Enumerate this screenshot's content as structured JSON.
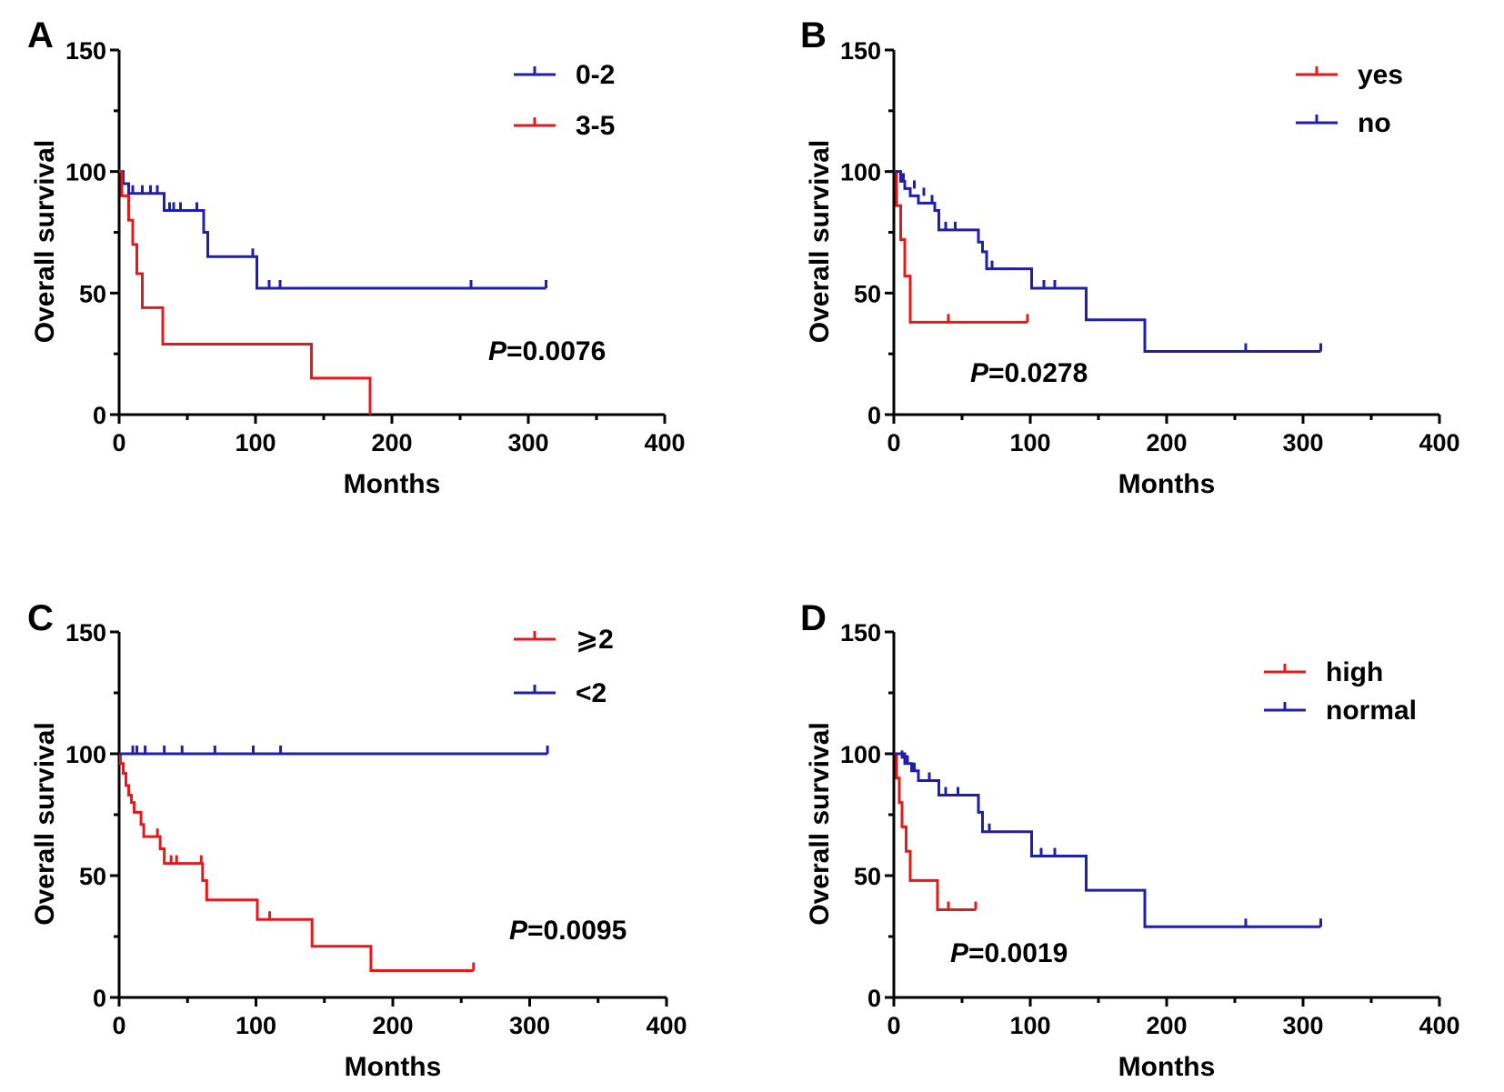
{
  "chart_data": [
    {
      "type": "line",
      "subtype": "kaplan-meier",
      "panel": "A",
      "xlabel": "Months",
      "ylabel": "Overall survival",
      "xlim": [
        0,
        400
      ],
      "ylim": [
        0,
        150
      ],
      "xticks": [
        0,
        100,
        200,
        300,
        400
      ],
      "yticks": [
        0,
        50,
        100,
        150
      ],
      "legend_position": "top-right",
      "p_prefix": "P",
      "p_text": "=0.0076",
      "series": [
        {
          "name": "0-2",
          "color": "#1f1fa8",
          "steps": [
            [
              0,
              100
            ],
            [
              3,
              95
            ],
            [
              7,
              91
            ],
            [
              33,
              84
            ],
            [
              62,
              75
            ],
            [
              65,
              65
            ],
            [
              101,
              52
            ],
            [
              313,
              52
            ]
          ],
          "censors": [
            [
              10,
              91
            ],
            [
              17,
              91
            ],
            [
              23,
              91
            ],
            [
              28,
              91
            ],
            [
              37,
              84
            ],
            [
              40,
              84
            ],
            [
              45,
              84
            ],
            [
              57,
              84
            ],
            [
              98,
              65
            ],
            [
              110,
              52
            ],
            [
              118,
              52
            ],
            [
              258,
              52
            ],
            [
              313,
              52
            ]
          ]
        },
        {
          "name": "3-5",
          "color": "#e41a1a",
          "steps": [
            [
              0,
              100
            ],
            [
              2,
              90
            ],
            [
              7,
              80
            ],
            [
              10,
              70
            ],
            [
              13,
              58
            ],
            [
              17,
              44
            ],
            [
              32,
              29
            ],
            [
              141,
              15
            ],
            [
              184,
              0
            ]
          ],
          "censors": []
        }
      ]
    },
    {
      "type": "line",
      "subtype": "kaplan-meier",
      "panel": "B",
      "xlabel": "Months",
      "ylabel": "Overall survival",
      "xlim": [
        0,
        400
      ],
      "ylim": [
        0,
        150
      ],
      "xticks": [
        0,
        100,
        200,
        300,
        400
      ],
      "yticks": [
        0,
        50,
        100,
        150
      ],
      "legend_position": "top-right",
      "p_prefix": "P",
      "p_text": "=0.0278",
      "series": [
        {
          "name": "yes",
          "color": "#e41a1a",
          "steps": [
            [
              0,
              100
            ],
            [
              2,
              86
            ],
            [
              5,
              72
            ],
            [
              8,
              57
            ],
            [
              12,
              38
            ],
            [
              98,
              38
            ]
          ],
          "censors": [
            [
              40,
              38
            ],
            [
              98,
              38
            ]
          ]
        },
        {
          "name": "no",
          "color": "#1f1fa8",
          "steps": [
            [
              0,
              100
            ],
            [
              5,
              96
            ],
            [
              8,
              93
            ],
            [
              12,
              90
            ],
            [
              18,
              87
            ],
            [
              30,
              84
            ],
            [
              33,
              76
            ],
            [
              62,
              71
            ],
            [
              65,
              67
            ],
            [
              68,
              60
            ],
            [
              101,
              52
            ],
            [
              141,
              39
            ],
            [
              184,
              26
            ],
            [
              313,
              26
            ]
          ],
          "censors": [
            [
              7,
              96
            ],
            [
              15,
              93
            ],
            [
              22,
              90
            ],
            [
              28,
              87
            ],
            [
              38,
              76
            ],
            [
              45,
              76
            ],
            [
              72,
              60
            ],
            [
              110,
              52
            ],
            [
              118,
              52
            ],
            [
              258,
              26
            ],
            [
              313,
              26
            ]
          ]
        }
      ]
    },
    {
      "type": "line",
      "subtype": "kaplan-meier",
      "panel": "C",
      "xlabel": "Months",
      "ylabel": "Overall survival",
      "xlim": [
        0,
        400
      ],
      "ylim": [
        0,
        150
      ],
      "xticks": [
        0,
        100,
        200,
        300,
        400
      ],
      "yticks": [
        0,
        50,
        100,
        150
      ],
      "legend_position": "top-right",
      "p_prefix": "P",
      "p_text": "=0.0095",
      "series": [
        {
          "name": "⩾2",
          "color": "#e41a1a",
          "steps": [
            [
              0,
              100
            ],
            [
              1,
              96
            ],
            [
              3,
              92
            ],
            [
              5,
              87
            ],
            [
              7,
              83
            ],
            [
              9,
              80
            ],
            [
              11,
              76
            ],
            [
              16,
              71
            ],
            [
              18,
              66
            ],
            [
              30,
              61
            ],
            [
              33,
              55
            ],
            [
              61,
              48
            ],
            [
              64,
              40
            ],
            [
              101,
              32
            ],
            [
              141,
              21
            ],
            [
              184,
              11
            ],
            [
              259,
              11
            ]
          ],
          "censors": [
            [
              28,
              66
            ],
            [
              38,
              55
            ],
            [
              42,
              55
            ],
            [
              60,
              55
            ],
            [
              110,
              32
            ],
            [
              259,
              11
            ]
          ]
        },
        {
          "name": "<2",
          "color": "#1f1fa8",
          "steps": [
            [
              0,
              100
            ],
            [
              313,
              100
            ]
          ],
          "censors": [
            [
              10,
              100
            ],
            [
              13,
              100
            ],
            [
              19,
              100
            ],
            [
              33,
              100
            ],
            [
              46,
              100
            ],
            [
              70,
              100
            ],
            [
              98,
              100
            ],
            [
              118,
              100
            ],
            [
              313,
              100
            ]
          ]
        }
      ]
    },
    {
      "type": "line",
      "subtype": "kaplan-meier",
      "panel": "D",
      "xlabel": "Months",
      "ylabel": "Overall survival",
      "xlim": [
        0,
        400
      ],
      "ylim": [
        0,
        150
      ],
      "xticks": [
        0,
        100,
        200,
        300,
        400
      ],
      "yticks": [
        0,
        50,
        100,
        150
      ],
      "legend_position": "top-right",
      "p_prefix": "P",
      "p_text": "=0.0019",
      "series": [
        {
          "name": "high",
          "color": "#e41a1a",
          "steps": [
            [
              0,
              100
            ],
            [
              2,
              90
            ],
            [
              4,
              80
            ],
            [
              6,
              70
            ],
            [
              9,
              60
            ],
            [
              12,
              48
            ],
            [
              32,
              36
            ],
            [
              60,
              36
            ]
          ],
          "censors": [
            [
              40,
              36
            ],
            [
              60,
              36
            ]
          ]
        },
        {
          "name": "normal",
          "color": "#1f1fa8",
          "steps": [
            [
              0,
              100
            ],
            [
              8,
              96
            ],
            [
              13,
              93
            ],
            [
              18,
              89
            ],
            [
              33,
              83
            ],
            [
              62,
              76
            ],
            [
              65,
              68
            ],
            [
              101,
              58
            ],
            [
              141,
              44
            ],
            [
              184,
              29
            ],
            [
              313,
              29
            ]
          ],
          "censors": [
            [
              6,
              98
            ],
            [
              10,
              96
            ],
            [
              15,
              93
            ],
            [
              26,
              89
            ],
            [
              38,
              83
            ],
            [
              47,
              83
            ],
            [
              70,
              68
            ],
            [
              108,
              58
            ],
            [
              118,
              58
            ],
            [
              258,
              29
            ],
            [
              313,
              29
            ]
          ]
        }
      ]
    }
  ]
}
